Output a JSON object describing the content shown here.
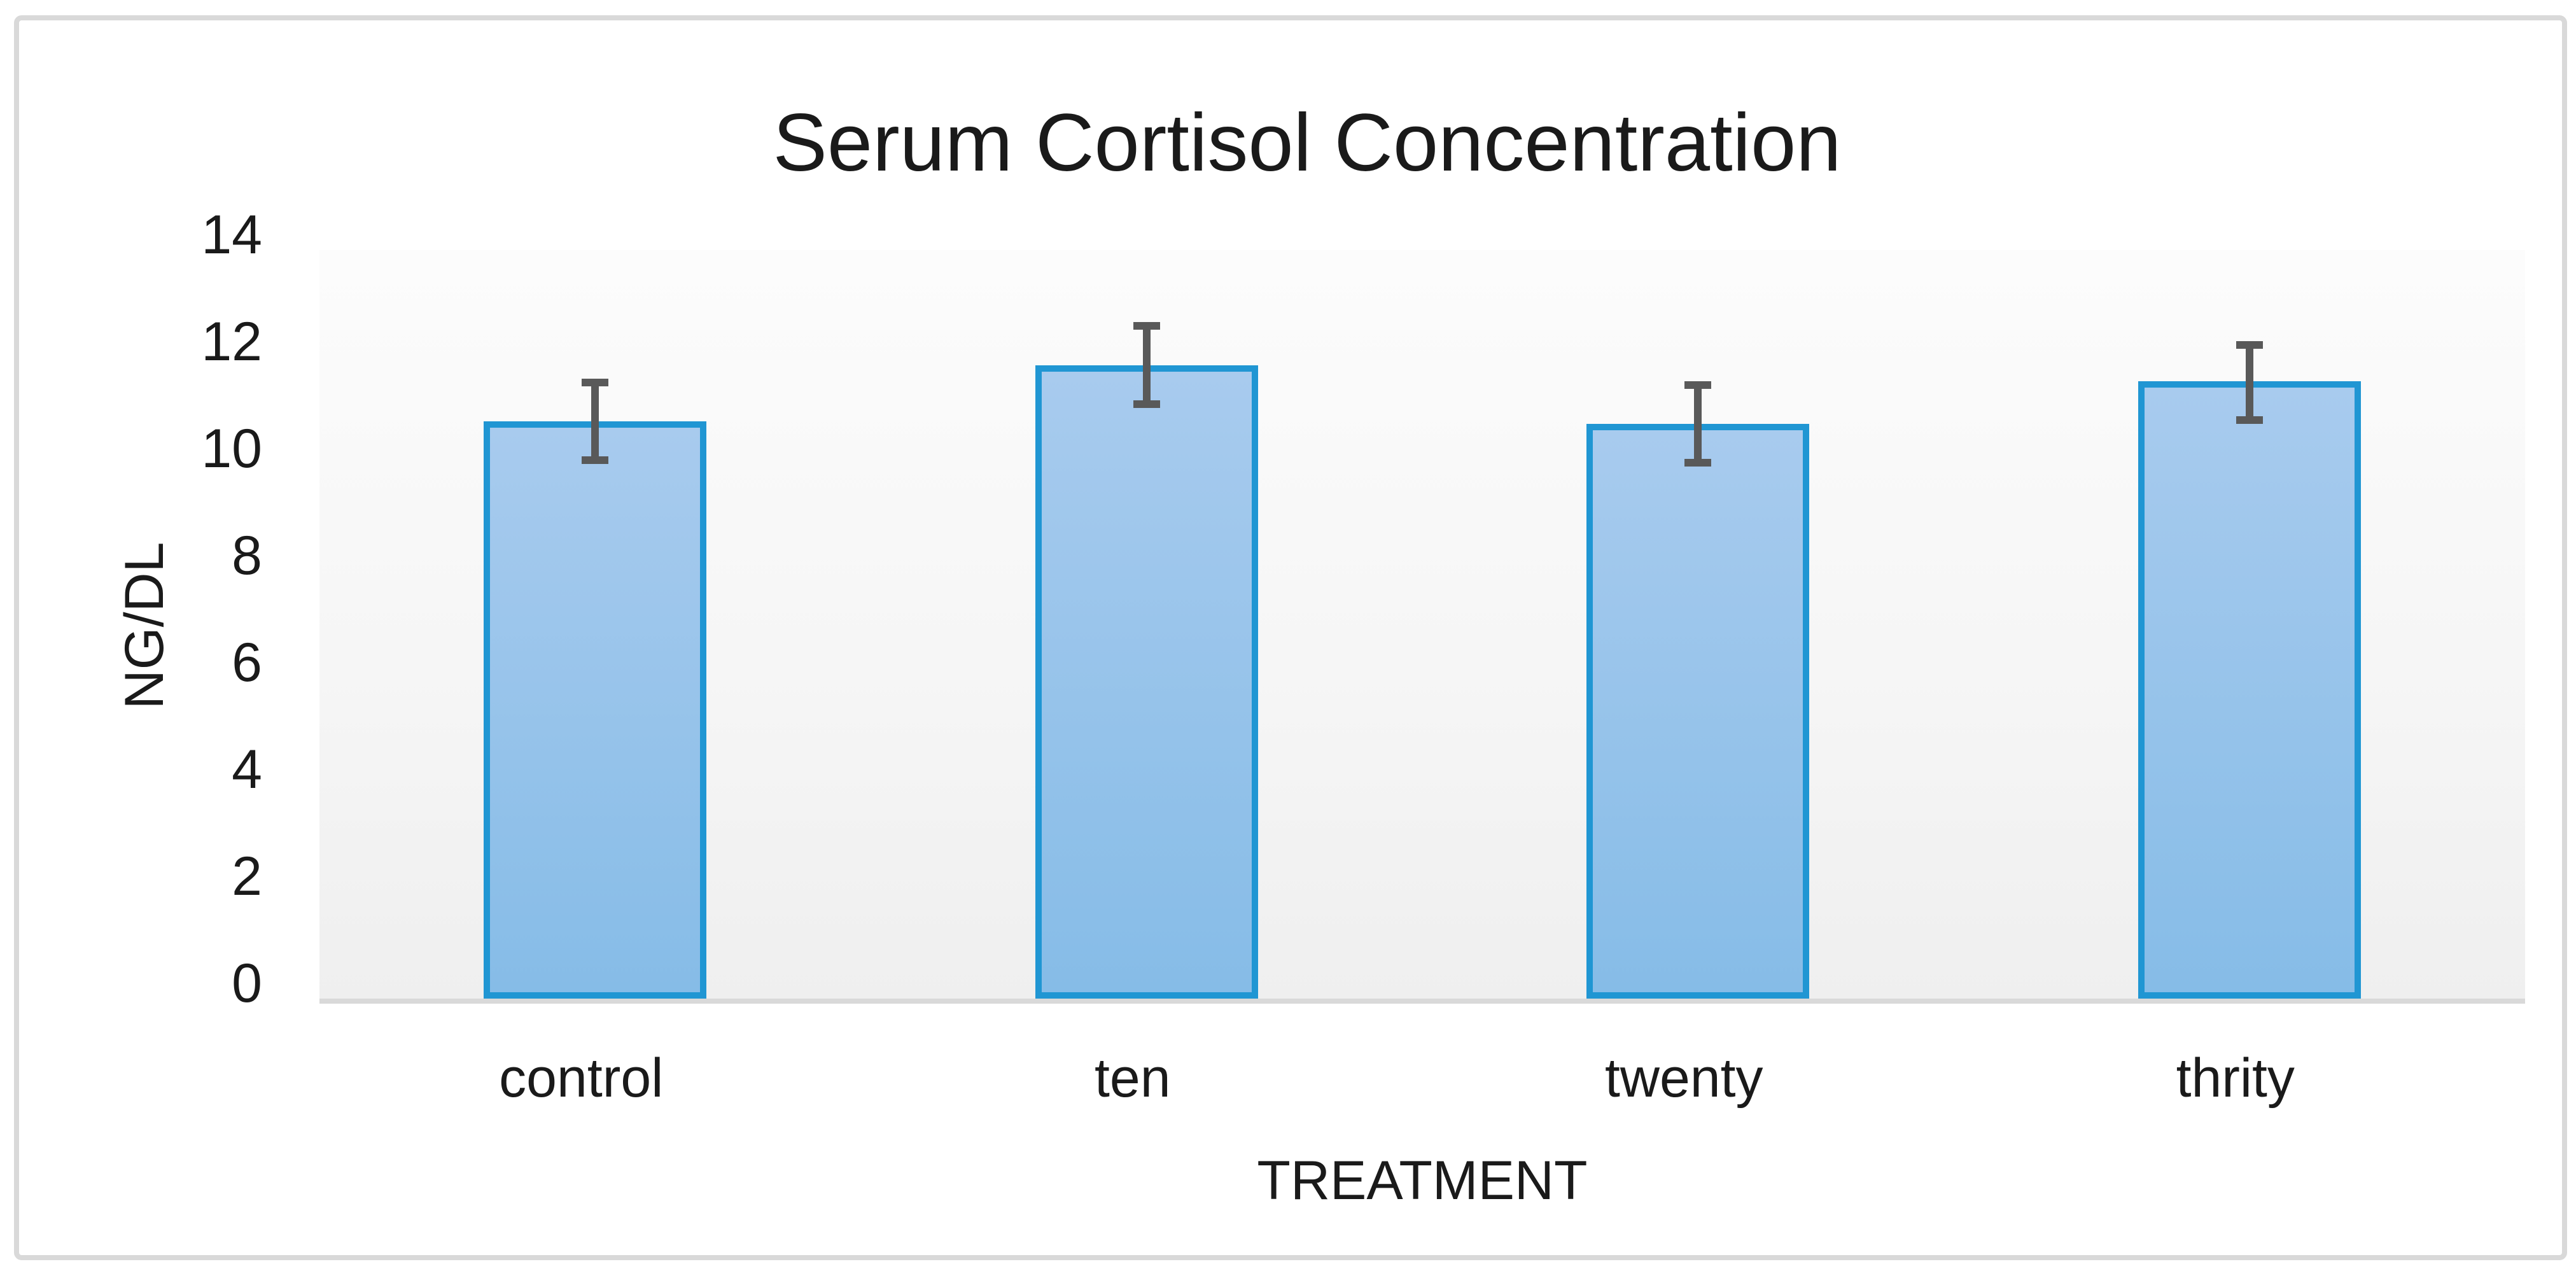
{
  "title": "Serum Cortisol Concentration",
  "chart_data": {
    "type": "bar",
    "title": "Serum Cortisol Concentration",
    "categories": [
      "control",
      "ten",
      "twenty",
      "thrity"
    ],
    "values": [
      10.8,
      11.85,
      10.75,
      11.55
    ],
    "error_high": [
      11.6,
      12.65,
      11.55,
      12.3
    ],
    "error_low": [
      10.0,
      11.05,
      9.95,
      10.75
    ],
    "xlabel": "TREATMENT",
    "ylabel": "NG/DL",
    "ylim": [
      0,
      14
    ],
    "yticks": [
      0,
      2,
      4,
      6,
      8,
      10,
      12,
      14
    ],
    "grid": false,
    "legend": false,
    "colors": {
      "bar_fill_top": "#a8cbee",
      "bar_fill_bottom": "#86bce7",
      "bar_border": "#2096d3",
      "error_bar": "#595959",
      "axis_band": "#d9d9d9",
      "frame_border": "#d9d9d9",
      "text": "#1a1a1a"
    }
  }
}
